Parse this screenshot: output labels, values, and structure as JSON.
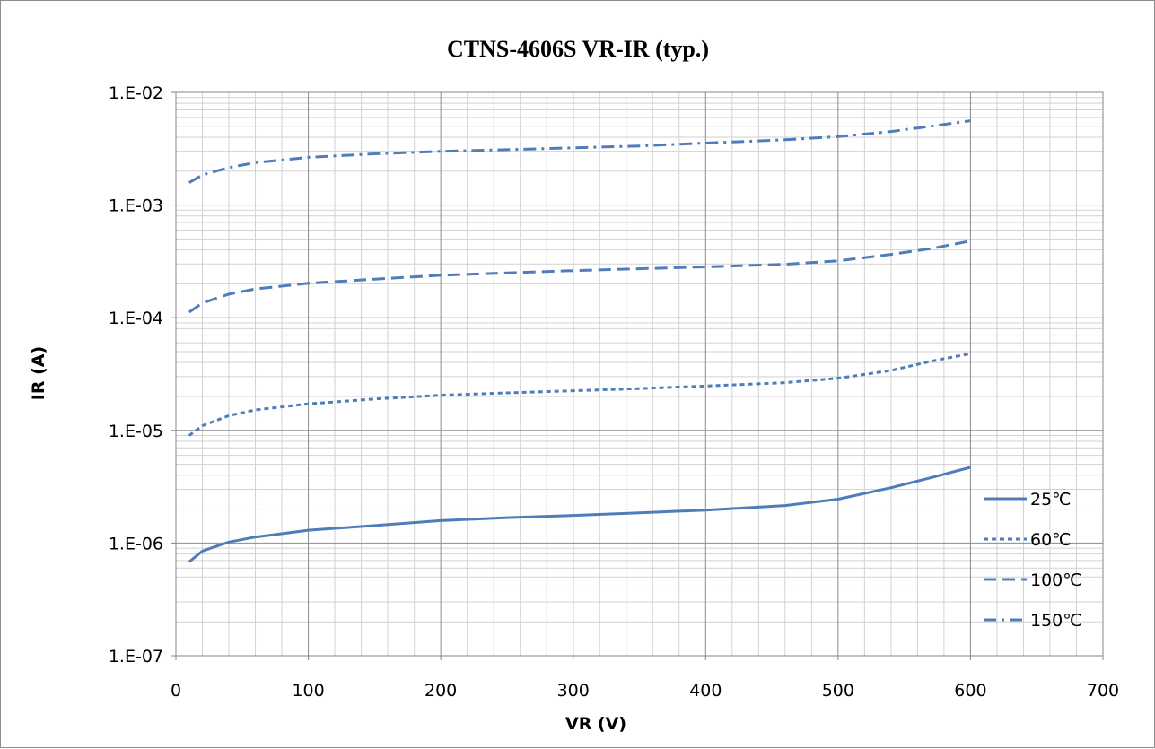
{
  "chart_data": {
    "type": "line",
    "title": "CTNS-4606S VR-IR (typ.)",
    "xlabel": "VR (V)",
    "ylabel": "IR (A)",
    "xlim": [
      0,
      700
    ],
    "ylim": [
      1e-07,
      0.01
    ],
    "yscale": "log",
    "grid": true,
    "legend_position": "right",
    "x_tick_labels": [
      "0",
      "100",
      "200",
      "300",
      "400",
      "500",
      "600",
      "700"
    ],
    "y_tick_labels": [
      "1.E-07",
      "1.E-06",
      "1.E-05",
      "1.E-04",
      "1.E-03",
      "1.E-02"
    ],
    "line_color": "#4F7DBA",
    "series": [
      {
        "name": "25℃",
        "dash": "solid",
        "points": [
          [
            10,
            6.8e-07
          ],
          [
            20,
            8.5e-07
          ],
          [
            40,
            1.02e-06
          ],
          [
            60,
            1.13e-06
          ],
          [
            100,
            1.3e-06
          ],
          [
            150,
            1.43e-06
          ],
          [
            200,
            1.58e-06
          ],
          [
            250,
            1.68e-06
          ],
          [
            300,
            1.76e-06
          ],
          [
            350,
            1.85e-06
          ],
          [
            400,
            1.96e-06
          ],
          [
            460,
            2.15e-06
          ],
          [
            500,
            2.45e-06
          ],
          [
            540,
            3.1e-06
          ],
          [
            570,
            3.8e-06
          ],
          [
            600,
            4.7e-06
          ]
        ]
      },
      {
        "name": "60℃",
        "dash": "short-dash",
        "points": [
          [
            10,
            9e-06
          ],
          [
            20,
            1.1e-05
          ],
          [
            40,
            1.35e-05
          ],
          [
            60,
            1.52e-05
          ],
          [
            100,
            1.72e-05
          ],
          [
            150,
            1.9e-05
          ],
          [
            200,
            2.05e-05
          ],
          [
            250,
            2.15e-05
          ],
          [
            300,
            2.25e-05
          ],
          [
            350,
            2.35e-05
          ],
          [
            400,
            2.48e-05
          ],
          [
            460,
            2.65e-05
          ],
          [
            500,
            2.9e-05
          ],
          [
            540,
            3.4e-05
          ],
          [
            570,
            4.1e-05
          ],
          [
            600,
            4.8e-05
          ]
        ]
      },
      {
        "name": "100℃",
        "dash": "long-dash",
        "points": [
          [
            10,
            0.000112
          ],
          [
            20,
            0.000135
          ],
          [
            40,
            0.000162
          ],
          [
            60,
            0.00018
          ],
          [
            100,
            0.000202
          ],
          [
            150,
            0.00022
          ],
          [
            200,
            0.000238
          ],
          [
            250,
            0.00025
          ],
          [
            300,
            0.000262
          ],
          [
            350,
            0.000272
          ],
          [
            400,
            0.000283
          ],
          [
            460,
            0.000298
          ],
          [
            500,
            0.00032
          ],
          [
            540,
            0.000365
          ],
          [
            570,
            0.00041
          ],
          [
            600,
            0.00048
          ]
        ]
      },
      {
        "name": "150℃",
        "dash": "dash-dot",
        "points": [
          [
            10,
            0.00158
          ],
          [
            20,
            0.00185
          ],
          [
            40,
            0.00215
          ],
          [
            60,
            0.00238
          ],
          [
            100,
            0.00265
          ],
          [
            150,
            0.00285
          ],
          [
            200,
            0.003
          ],
          [
            250,
            0.0031
          ],
          [
            300,
            0.00322
          ],
          [
            350,
            0.00335
          ],
          [
            400,
            0.00355
          ],
          [
            460,
            0.0038
          ],
          [
            500,
            0.00405
          ],
          [
            540,
            0.0045
          ],
          [
            570,
            0.005
          ],
          [
            600,
            0.0056
          ]
        ]
      }
    ]
  }
}
